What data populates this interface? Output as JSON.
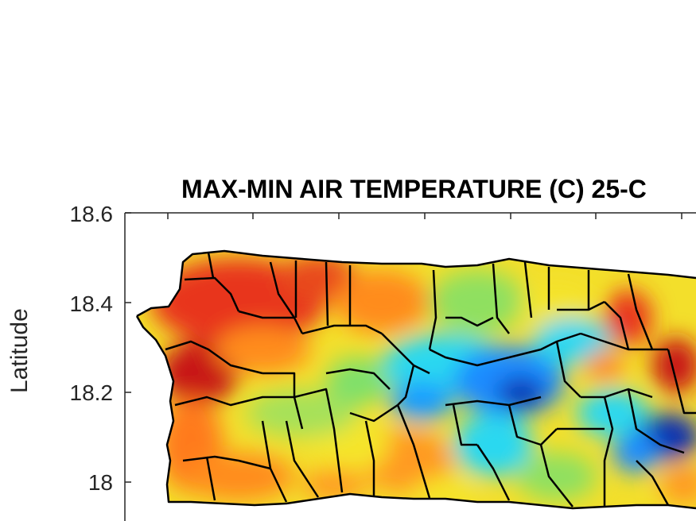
{
  "figure": {
    "title": "MAX-MIN AIR TEMPERATURE (C) 25-C",
    "ylabel": "Latitude",
    "yticks": [
      "18.6",
      "18.4",
      "18.2",
      "18"
    ]
  },
  "colors": {
    "axis": "#262626",
    "boundary": "#000000",
    "hot": "#e8341a",
    "warm": "#ff8c1a",
    "yellow": "#f5e52b",
    "green": "#9ae35a",
    "cyan": "#29d8f0",
    "blue": "#1a8cff",
    "deepblue": "#0a2fb0"
  }
}
